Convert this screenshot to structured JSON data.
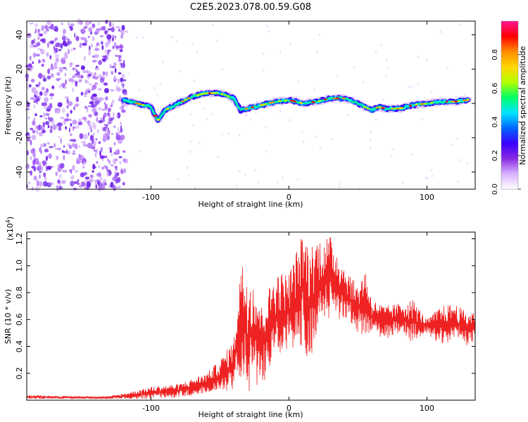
{
  "title": "C2E5.2023.078.00.59.G08",
  "chart_data": [
    {
      "type": "heatmap",
      "xlabel": "Height of straight line (km)",
      "ylabel": "Frequency (Hz)",
      "xlim": [
        -190,
        135
      ],
      "ylim": [
        -50,
        48
      ],
      "xticks": [
        -100,
        0,
        100
      ],
      "yticks": [
        -40,
        -20,
        0,
        20,
        40
      ],
      "colorbar": {
        "label": "Normalized spectral amplitude",
        "range": [
          0,
          1
        ],
        "ticks": [
          "0.0",
          "0.2",
          "0.4",
          "0.6",
          "0.8"
        ],
        "colors": [
          "#ffffff",
          "#d9b3ff",
          "#8a2be2",
          "#3a00ff",
          "#0066ff",
          "#00e5ff",
          "#00ff66",
          "#b3ff00",
          "#ffd700",
          "#ff8c00",
          "#ff0000",
          "#ff1493"
        ]
      },
      "ridge": {
        "description_points_x": [
          -120,
          -110,
          -100,
          -95,
          -90,
          -80,
          -70,
          -60,
          -50,
          -40,
          -35,
          -30,
          -25,
          -20,
          -10,
          0,
          10,
          20,
          30,
          40,
          50,
          55,
          60,
          65,
          70,
          80,
          90,
          100,
          110,
          120,
          130
        ],
        "description_points_y": [
          2,
          0,
          -2,
          -10,
          -4,
          0,
          4,
          6,
          6,
          3,
          -4,
          -3,
          -2,
          -1,
          1,
          2,
          0,
          1,
          3,
          3,
          0,
          -2,
          -4,
          -2,
          -3,
          -3,
          -1,
          0,
          1,
          1,
          2
        ]
      }
    },
    {
      "type": "line",
      "xlabel": "Height of straight line (km)",
      "ylabel": "SNR (10 * v/v)",
      "y_multiplier": "(x10",
      "y_multiplier_exp": "4",
      "y_multiplier_close": ")",
      "xlim": [
        -190,
        135
      ],
      "ylim": [
        0,
        1.25
      ],
      "xticks": [
        -100,
        0,
        100
      ],
      "yticks": [
        "0.2",
        "0.4",
        "0.6",
        "0.8",
        "1.0",
        "1.2"
      ],
      "series": [
        {
          "color": "#ee2222",
          "envelope_x": [
            -190,
            -160,
            -130,
            -120,
            -100,
            -80,
            -60,
            -50,
            -40,
            -35,
            -30,
            -25,
            -20,
            -10,
            0,
            10,
            15,
            20,
            30,
            40,
            50,
            55,
            60,
            70,
            80,
            90,
            100,
            110,
            120,
            130,
            135
          ],
          "envelope_low": [
            0.01,
            0.01,
            0.01,
            0.01,
            0.01,
            0.02,
            0.05,
            0.06,
            0.08,
            0.15,
            0.04,
            0.08,
            0.1,
            0.3,
            0.35,
            0.4,
            0.25,
            0.5,
            0.6,
            0.6,
            0.5,
            0.45,
            0.5,
            0.45,
            0.5,
            0.42,
            0.5,
            0.4,
            0.45,
            0.4,
            0.45
          ],
          "envelope_high": [
            0.04,
            0.03,
            0.03,
            0.05,
            0.1,
            0.12,
            0.2,
            0.3,
            0.45,
            1.05,
            0.95,
            0.9,
            0.7,
            0.95,
            0.95,
            1.25,
            1.15,
            1.2,
            1.22,
            1.0,
            0.85,
            1.0,
            0.75,
            0.7,
            0.72,
            0.75,
            0.6,
            0.7,
            0.72,
            0.65,
            0.68
          ]
        }
      ]
    }
  ]
}
